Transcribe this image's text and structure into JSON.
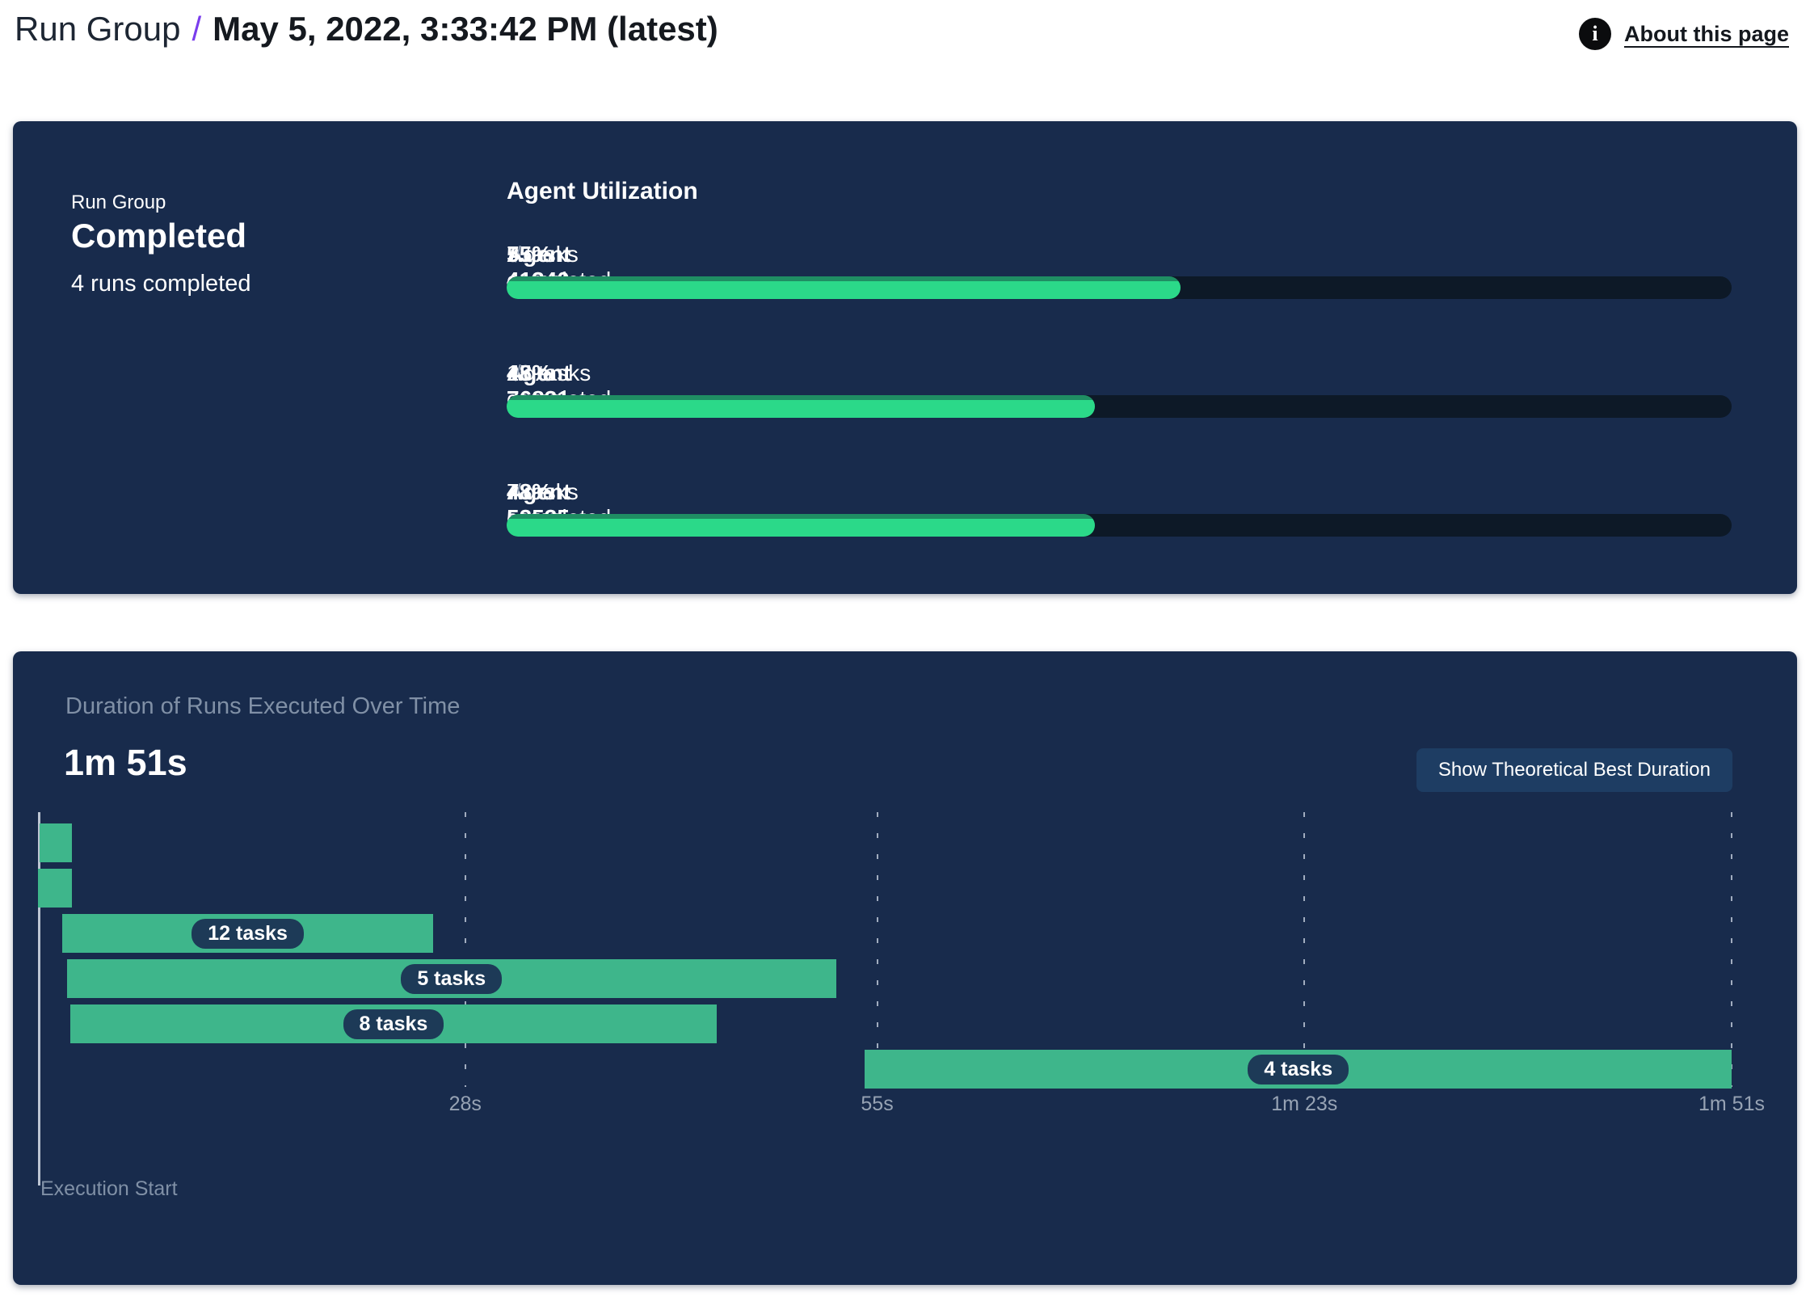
{
  "header": {
    "breadcrumb_root": "Run Group",
    "separator": "/",
    "run_title": "May 5, 2022, 3:33:42 PM (latest)",
    "about_label": "About this page",
    "info_glyph": "i"
  },
  "status_panel": {
    "label": "Run Group",
    "status": "Completed",
    "runs_summary": "4 runs completed"
  },
  "utilization": {
    "heading": "Agent Utilization",
    "separator": "/",
    "agents": [
      {
        "name": "Agent 41340",
        "tasks": "7 tasks completed",
        "percent": 55,
        "percent_label": "55%"
      },
      {
        "name": "Agent 76831",
        "tasks": "15 tasks completed",
        "percent": 48,
        "percent_label": "48%"
      },
      {
        "name": "Agent 52535",
        "tasks": "7 tasks completed",
        "percent": 48,
        "percent_label": "48%"
      }
    ]
  },
  "duration_panel": {
    "title": "Duration of Runs Executed Over Time",
    "total_duration": "1m 51s",
    "button_label": "Show Theoretical Best Duration",
    "execution_start_label": "Execution Start"
  },
  "chart_data": [
    {
      "type": "bar",
      "title": "Agent Utilization",
      "categories": [
        "Agent 41340",
        "Agent 76831",
        "Agent 52535"
      ],
      "values": [
        55,
        48,
        48
      ],
      "value_labels": [
        "55%",
        "48%",
        "48%"
      ],
      "tasks_completed": [
        7,
        15,
        7
      ],
      "xlim": [
        0,
        100
      ],
      "orientation": "horizontal",
      "bar_color": "#2bd989",
      "track_color": "#0d1927"
    },
    {
      "type": "gantt",
      "title": "Duration of Runs Executed Over Time",
      "total_duration_label": "1m 51s",
      "timeline_start_s": 0,
      "timeline_end_s": 111,
      "x_ticks": [
        {
          "seconds": 28,
          "label": "28s"
        },
        {
          "seconds": 55,
          "label": "55s"
        },
        {
          "seconds": 83,
          "label": "1m 23s"
        },
        {
          "seconds": 111,
          "label": "1m 51s"
        }
      ],
      "x_start_label": "Execution Start",
      "rows": [
        {
          "label": "",
          "start_s": 0.1,
          "end_s": 2.2
        },
        {
          "label": "",
          "start_s": 0.0,
          "end_s": 2.2
        },
        {
          "label": "12 tasks",
          "start_s": 1.6,
          "end_s": 25.9
        },
        {
          "label": "5 tasks",
          "start_s": 1.9,
          "end_s": 52.3
        },
        {
          "label": "8 tasks",
          "start_s": 2.1,
          "end_s": 44.5
        },
        {
          "label": "4 tasks",
          "start_s": 54.2,
          "end_s": 111
        }
      ],
      "bar_color": "#3eb68b",
      "grid": true,
      "legend": false
    }
  ],
  "colors": {
    "panel_bg": "#182b4c",
    "progress_green": "#2bd989",
    "gantt_green": "#3eb68b",
    "track": "#0d1927",
    "accent_purple": "#7a3ded",
    "muted_text": "#8494ab",
    "button_bg": "#1e3d63",
    "chip_bg": "#1d3a57"
  }
}
